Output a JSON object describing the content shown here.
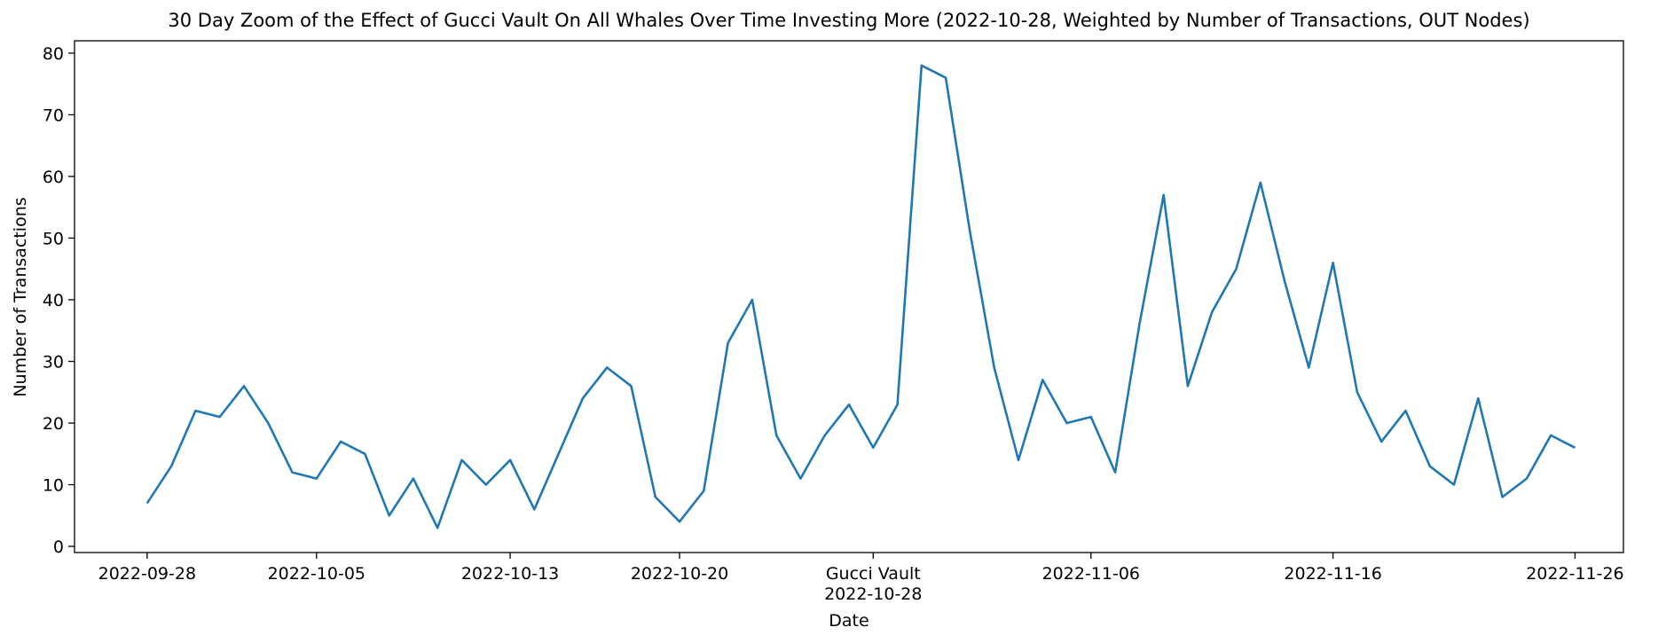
{
  "chart_data": {
    "type": "line",
    "title": "30 Day Zoom of the Effect of Gucci Vault On All Whales Over Time Investing More (2022-10-28, Weighted by Number of Transactions, OUT Nodes)",
    "xlabel": "Date",
    "ylabel": "Number of Transactions",
    "xlim": [
      "2022-09-25",
      "2022-11-28"
    ],
    "ylim": [
      -1,
      82
    ],
    "grid": false,
    "line_color": "#1f77b4",
    "x_ticks": [
      {
        "date": "2022-09-28",
        "label": "2022-09-28"
      },
      {
        "date": "2022-10-05",
        "label": "2022-10-05"
      },
      {
        "date": "2022-10-13",
        "label": "2022-10-13"
      },
      {
        "date": "2022-10-20",
        "label": "2022-10-20"
      },
      {
        "date": "2022-10-28",
        "label": "2022-10-28",
        "annotation": "Gucci Vault"
      },
      {
        "date": "2022-11-06",
        "label": "2022-11-06"
      },
      {
        "date": "2022-11-16",
        "label": "2022-11-16"
      },
      {
        "date": "2022-11-26",
        "label": "2022-11-26"
      }
    ],
    "y_ticks": [
      0,
      10,
      20,
      30,
      40,
      50,
      60,
      70,
      80
    ],
    "series": [
      {
        "x": [
          "2022-09-28",
          "2022-09-29",
          "2022-09-30",
          "2022-10-01",
          "2022-10-02",
          "2022-10-03",
          "2022-10-04",
          "2022-10-05",
          "2022-10-06",
          "2022-10-07",
          "2022-10-08",
          "2022-10-09",
          "2022-10-10",
          "2022-10-11",
          "2022-10-12",
          "2022-10-13",
          "2022-10-14",
          "2022-10-15",
          "2022-10-16",
          "2022-10-17",
          "2022-10-18",
          "2022-10-19",
          "2022-10-20",
          "2022-10-21",
          "2022-10-22",
          "2022-10-23",
          "2022-10-24",
          "2022-10-25",
          "2022-10-26",
          "2022-10-27",
          "2022-10-28",
          "2022-10-29",
          "2022-10-30",
          "2022-10-31",
          "2022-11-01",
          "2022-11-02",
          "2022-11-03",
          "2022-11-04",
          "2022-11-05",
          "2022-11-06",
          "2022-11-07",
          "2022-11-08",
          "2022-11-09",
          "2022-11-10",
          "2022-11-11",
          "2022-11-12",
          "2022-11-13",
          "2022-11-14",
          "2022-11-15",
          "2022-11-16",
          "2022-11-17",
          "2022-11-18",
          "2022-11-19",
          "2022-11-20",
          "2022-11-21",
          "2022-11-22",
          "2022-11-23",
          "2022-11-24",
          "2022-11-25",
          "2022-11-26"
        ],
        "values": [
          7,
          13,
          22,
          21,
          26,
          20,
          12,
          11,
          17,
          15,
          5,
          11,
          3,
          14,
          10,
          14,
          6,
          15,
          24,
          29,
          26,
          8,
          4,
          9,
          33,
          40,
          18,
          11,
          18,
          23,
          16,
          23,
          78,
          76,
          51,
          29,
          14,
          27,
          20,
          21,
          12,
          36,
          57,
          26,
          38,
          45,
          59,
          43,
          29,
          46,
          25,
          17,
          22,
          13,
          10,
          24,
          8,
          11,
          18,
          16
        ]
      }
    ]
  }
}
